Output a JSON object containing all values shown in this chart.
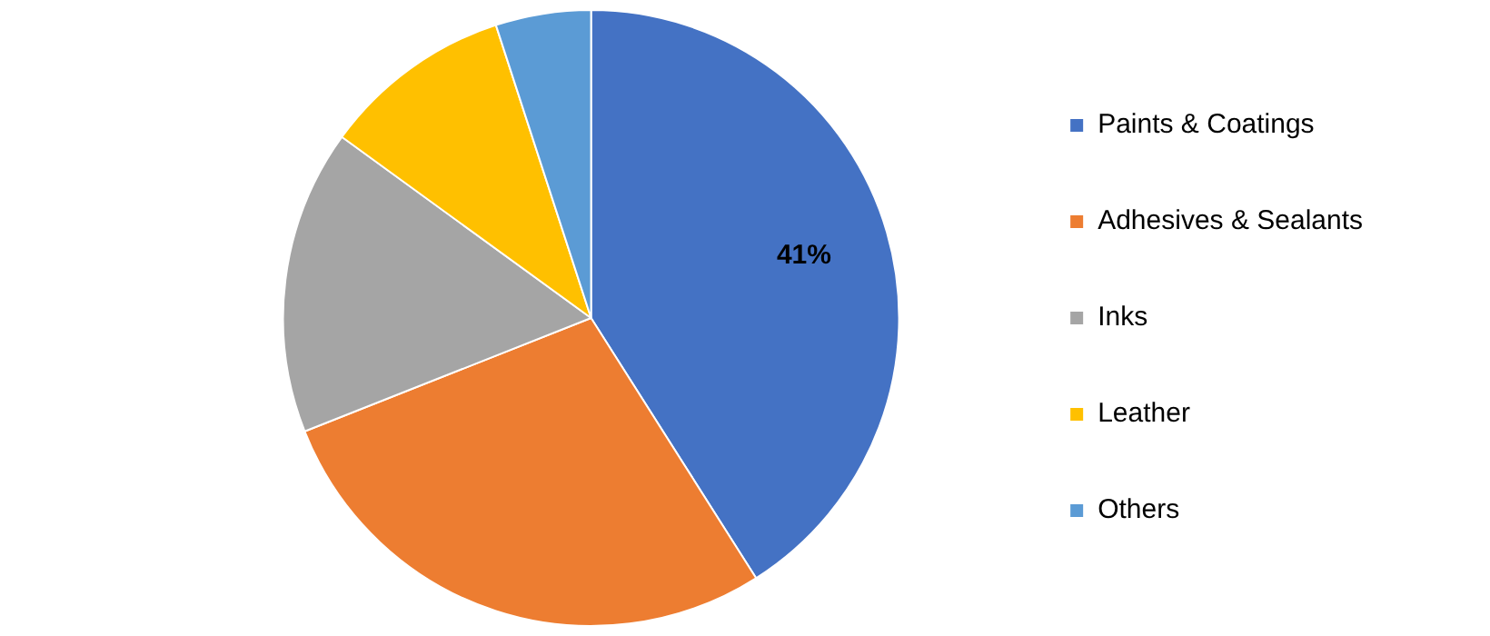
{
  "chart_data": {
    "type": "pie",
    "categories": [
      "Paints & Coatings",
      "Adhesives & Sealants",
      "Inks",
      "Leather",
      "Others"
    ],
    "values": [
      41,
      28,
      16,
      10,
      5
    ],
    "colors": [
      "#4472c4",
      "#ed7d31",
      "#a5a5a5",
      "#ffc000",
      "#5b9bd5"
    ],
    "value_labels": [
      "41%",
      null,
      null,
      null,
      null
    ],
    "legend": "right"
  }
}
